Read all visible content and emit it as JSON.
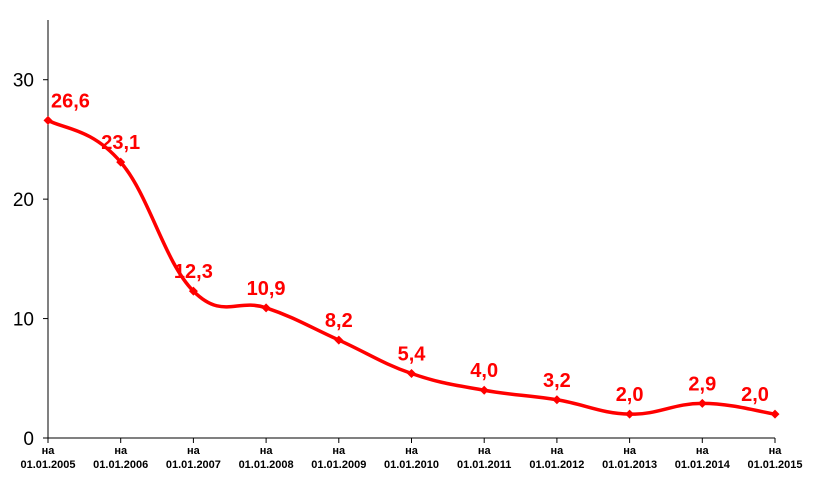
{
  "chart_data": {
    "type": "line",
    "title": "",
    "xlabel": "",
    "ylabel": "",
    "ylim": [
      0,
      35
    ],
    "yticks": [
      "0",
      "10",
      "20",
      "30"
    ],
    "grid": false,
    "legend": "none",
    "categories": [
      {
        "prefix": "на",
        "date": "01.01.2005"
      },
      {
        "prefix": "на",
        "date": "01.01.2006"
      },
      {
        "prefix": "на",
        "date": "01.01.2007"
      },
      {
        "prefix": "на",
        "date": "01.01.2008"
      },
      {
        "prefix": "на",
        "date": "01.01.2009"
      },
      {
        "prefix": "на",
        "date": "01.01.2010"
      },
      {
        "prefix": "на",
        "date": "01.01.2011"
      },
      {
        "prefix": "на",
        "date": "01.01.2012"
      },
      {
        "prefix": "на",
        "date": "01.01.2013"
      },
      {
        "prefix": "на",
        "date": "01.01.2014"
      },
      {
        "prefix": "на",
        "date": "01.01.2015"
      }
    ],
    "values": [
      26.6,
      23.1,
      12.3,
      10.9,
      8.2,
      5.4,
      4.0,
      3.2,
      2.0,
      2.9,
      2.0
    ],
    "data_labels": [
      "26,6",
      "23,1",
      "12,3",
      "10,9",
      "8,2",
      "5,4",
      "4,0",
      "3,2",
      "2,0",
      "2,9",
      "2,0"
    ],
    "line_color": "#ff0000",
    "label_color": "#ff0000",
    "axis_color": "#000000",
    "smooth": true
  }
}
